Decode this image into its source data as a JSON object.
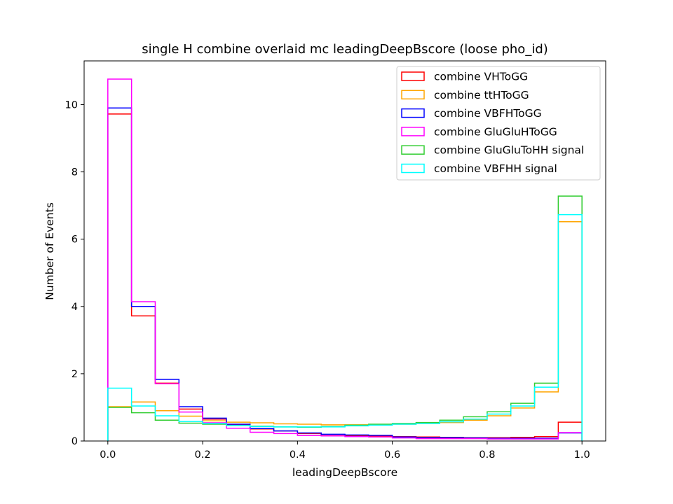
{
  "chart_data": {
    "type": "step-histogram",
    "title": "single H combine overlaid mc leadingDeepBscore (loose pho_id)",
    "xlabel": "leadingDeepBscore",
    "ylabel": "Number of Events",
    "xlim": [
      -0.05,
      1.05
    ],
    "ylim": [
      0,
      11.3
    ],
    "xticks": [
      "0.0",
      "0.2",
      "0.4",
      "0.6",
      "0.8",
      "1.0"
    ],
    "yticks": [
      "0",
      "2",
      "4",
      "6",
      "8",
      "10"
    ],
    "bin_edges": [
      0.0,
      0.05,
      0.1,
      0.15,
      0.2,
      0.25,
      0.3,
      0.35,
      0.4,
      0.45,
      0.5,
      0.55,
      0.6,
      0.65,
      0.7,
      0.75,
      0.8,
      0.85,
      0.9,
      0.95,
      1.0
    ],
    "legend_position": "upper right",
    "grid": false,
    "series": [
      {
        "name": "combine VHToGG",
        "color": "#ff0000",
        "values": [
          9.72,
          3.72,
          1.72,
          0.95,
          0.65,
          0.48,
          0.36,
          0.3,
          0.22,
          0.19,
          0.16,
          0.15,
          0.13,
          0.12,
          0.11,
          0.1,
          0.1,
          0.11,
          0.13,
          0.56
        ]
      },
      {
        "name": "combine ttHToGG",
        "color": "#ffa500",
        "values": [
          1.02,
          1.16,
          0.9,
          0.74,
          0.6,
          0.56,
          0.54,
          0.51,
          0.5,
          0.48,
          0.48,
          0.48,
          0.5,
          0.52,
          0.55,
          0.62,
          0.75,
          0.98,
          1.46,
          6.52
        ]
      },
      {
        "name": "combine VBFHToGG",
        "color": "#0000ff",
        "values": [
          9.9,
          4.0,
          1.83,
          1.02,
          0.68,
          0.5,
          0.37,
          0.3,
          0.24,
          0.2,
          0.18,
          0.17,
          0.12,
          0.1,
          0.1,
          0.09,
          0.08,
          0.08,
          0.08,
          0.24
        ]
      },
      {
        "name": "combine GluGluHToGG",
        "color": "#ff00ff",
        "values": [
          10.76,
          4.14,
          1.7,
          0.86,
          0.54,
          0.38,
          0.26,
          0.22,
          0.16,
          0.15,
          0.13,
          0.12,
          0.09,
          0.07,
          0.07,
          0.07,
          0.06,
          0.06,
          0.06,
          0.25
        ]
      },
      {
        "name": "combine GluGluToHH signal",
        "color": "#32cd32",
        "values": [
          1.0,
          0.84,
          0.62,
          0.53,
          0.5,
          0.46,
          0.44,
          0.42,
          0.41,
          0.43,
          0.47,
          0.5,
          0.52,
          0.55,
          0.62,
          0.72,
          0.87,
          1.12,
          1.72,
          7.28
        ]
      },
      {
        "name": "combine VBFHH signal",
        "color": "#00ffff",
        "values": [
          1.57,
          1.04,
          0.75,
          0.58,
          0.52,
          0.46,
          0.43,
          0.42,
          0.42,
          0.42,
          0.45,
          0.47,
          0.5,
          0.52,
          0.57,
          0.65,
          0.8,
          1.04,
          1.6,
          6.73
        ]
      }
    ]
  }
}
